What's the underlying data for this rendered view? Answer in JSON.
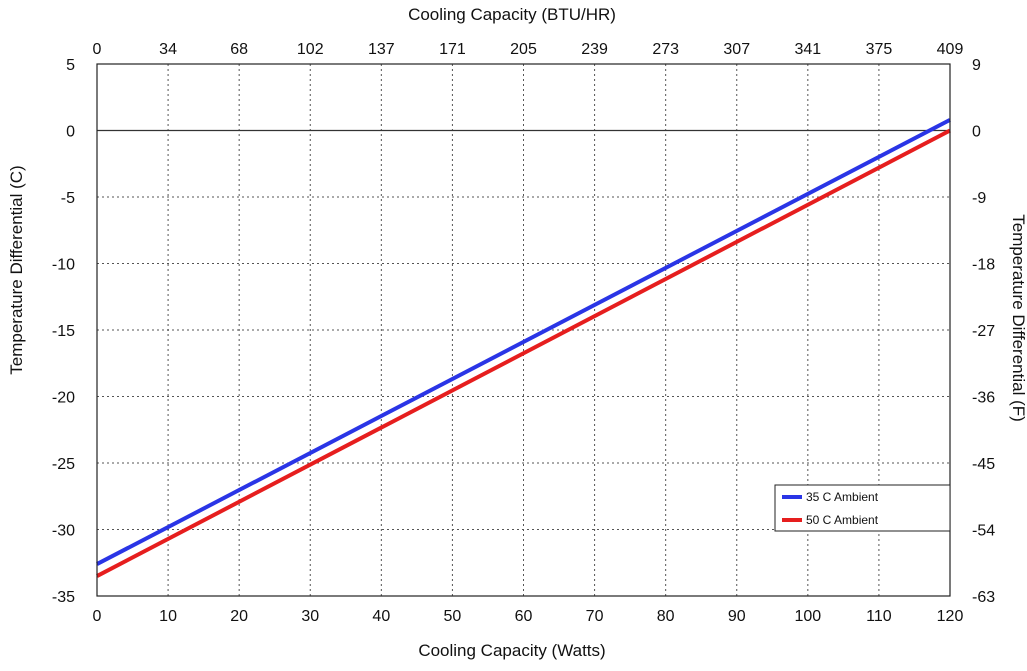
{
  "chart_data": {
    "type": "line",
    "title": "",
    "xlabel": "Cooling Capacity (Watts)",
    "x2label": "Cooling Capacity (BTU/HR)",
    "ylabel": "Temperature Differential (C)",
    "y2label": "Temperature Differential (F)",
    "xlim": [
      0,
      120
    ],
    "ylim": [
      -35,
      5
    ],
    "x_ticks": [
      "0",
      "10",
      "20",
      "30",
      "40",
      "50",
      "60",
      "70",
      "80",
      "90",
      "100",
      "110",
      "120"
    ],
    "x2_ticks": [
      "0",
      "34",
      "68",
      "102",
      "137",
      "171",
      "205",
      "239",
      "273",
      "307",
      "341",
      "375",
      "409"
    ],
    "y_ticks": [
      "5",
      "0",
      "-5",
      "-10",
      "-15",
      "-20",
      "-25",
      "-30",
      "-35"
    ],
    "y2_ticks": [
      "9",
      "0",
      "-9",
      "-18",
      "-27",
      "-36",
      "-45",
      "-54",
      "-63"
    ],
    "grid": true,
    "zero_line": true,
    "legend_position": "bottom-right",
    "series": [
      {
        "name": "35 C Ambient",
        "color": "#2a35e6",
        "x": [
          0,
          120
        ],
        "y": [
          -32.6,
          0.8
        ]
      },
      {
        "name": "50 C Ambient",
        "color": "#e61e1e",
        "x": [
          0,
          120
        ],
        "y": [
          -33.5,
          0.0
        ]
      }
    ]
  }
}
